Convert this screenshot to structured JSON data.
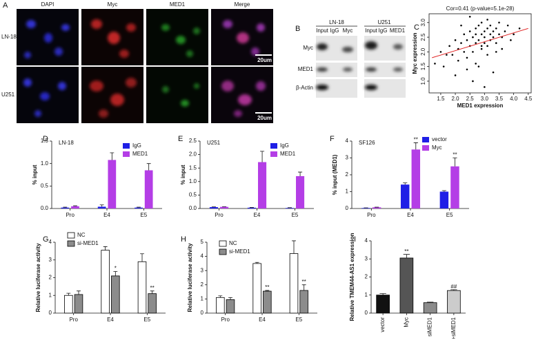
{
  "figure_a": {
    "panel_label": "A",
    "columns": [
      "DAPI",
      "Myc",
      "MED1",
      "Merge"
    ],
    "rows": [
      "LN-18",
      "U251"
    ],
    "scale_bars": [
      "20um",
      "20um"
    ]
  },
  "figure_b": {
    "panel_label": "B",
    "groups": [
      {
        "name": "LN-18",
        "lanes": [
          "Input",
          "IgG",
          "Myc"
        ]
      },
      {
        "name": "U251",
        "lanes": [
          "Input",
          "IgG",
          "MED1"
        ]
      }
    ],
    "rows": [
      "Myc",
      "MED1",
      "β-Actin"
    ]
  },
  "chart_data": [
    {
      "type": "scatter",
      "panel_label": "C",
      "title": "Cor=0.41 (p-value=5.1e-28)",
      "x_label": "MED1 expression",
      "y_label": "Myc expression",
      "x": [
        1.3,
        1.5,
        1.6,
        1.8,
        1.9,
        2.0,
        2.1,
        2.1,
        2.2,
        2.3,
        2.3,
        2.4,
        2.4,
        2.5,
        2.5,
        2.6,
        2.6,
        2.7,
        2.7,
        2.7,
        2.8,
        2.8,
        2.9,
        2.9,
        2.9,
        3.0,
        3.0,
        3.0,
        3.1,
        3.1,
        3.1,
        3.2,
        3.2,
        3.2,
        3.3,
        3.3,
        3.4,
        3.4,
        3.5,
        3.5,
        3.6,
        3.7,
        3.8,
        4.0,
        4.2,
        2.0,
        2.6,
        3.0,
        3.3,
        2.8,
        2.4,
        3.6,
        2.2,
        3.1,
        2.9,
        1.7,
        3.9,
        2.5,
        3.4,
        2.7
      ],
      "y": [
        1.6,
        2.0,
        1.5,
        2.2,
        1.9,
        2.4,
        1.7,
        2.1,
        2.3,
        2.0,
        2.6,
        1.8,
        2.4,
        2.2,
        2.7,
        2.0,
        2.5,
        2.3,
        2.8,
        1.6,
        2.4,
        2.9,
        2.1,
        2.6,
        3.0,
        2.3,
        2.7,
        2.5,
        2.2,
        2.8,
        3.1,
        2.4,
        2.6,
        2.9,
        2.5,
        2.7,
        2.3,
        2.8,
        2.6,
        3.0,
        2.5,
        2.7,
        2.9,
        2.6,
        2.8,
        1.2,
        1.0,
        0.8,
        1.3,
        1.5,
        1.4,
        2.1,
        2.9,
        1.9,
        2.2,
        1.9,
        2.4,
        3.2,
        2.0,
        2.6
      ],
      "color": "#000000",
      "fit_line": {
        "x": [
          1.2,
          4.5
        ],
        "y": [
          1.8,
          2.8
        ],
        "color": "#e02020"
      },
      "xlim": [
        1.1,
        4.6
      ],
      "ylim": [
        0.6,
        3.3
      ],
      "xticks": [
        1.5,
        {
          "value": 2,
          "label": "2.0"
        },
        2.5,
        {
          "value": 3,
          "label": "3.0"
        },
        3.5,
        {
          "value": 4,
          "label": "4.0"
        },
        4.5
      ],
      "yticks": [
        {
          "value": 1,
          "label": "1.0"
        },
        1.5,
        {
          "value": 2,
          "label": "2.0"
        },
        2.5,
        {
          "value": 3,
          "label": "3.0"
        }
      ]
    },
    {
      "type": "bar",
      "panel_label": "D",
      "title": "LN-18",
      "y_label": "% input",
      "categories": [
        "Pro",
        "E4",
        "E5"
      ],
      "series": [
        {
          "name": "IgG",
          "color": "#1f1fe6",
          "values": [
            0.02,
            0.04,
            0.02
          ],
          "errors": [
            0.01,
            0.04,
            0.01
          ]
        },
        {
          "name": "MED1",
          "color": "#b43ee6",
          "values": [
            0.05,
            1.08,
            0.85
          ],
          "errors": [
            0.01,
            0.16,
            0.15
          ]
        }
      ],
      "ylim": [
        0,
        1.5
      ],
      "yticks": [
        {
          "value": 0,
          "label": "0.0"
        },
        0.5,
        {
          "value": 1,
          "label": "1.0"
        },
        1.5
      ]
    },
    {
      "type": "bar",
      "panel_label": "E",
      "title": "U251",
      "y_label": "% input",
      "categories": [
        "Pro",
        "E4",
        "E5"
      ],
      "series": [
        {
          "name": "IgG",
          "color": "#1f1fe6",
          "values": [
            0.05,
            0.03,
            0.02
          ],
          "errors": [
            0.01,
            0.01,
            0.01
          ]
        },
        {
          "name": "MED1",
          "color": "#b43ee6",
          "values": [
            0.06,
            1.72,
            1.2
          ],
          "errors": [
            0.01,
            0.4,
            0.15
          ]
        }
      ],
      "ylim": [
        0,
        2.5
      ],
      "yticks": [
        {
          "value": 0,
          "label": "0.0"
        },
        0.5,
        {
          "value": 1,
          "label": "1.0"
        },
        1.5,
        {
          "value": 2,
          "label": "2.0"
        },
        2.5
      ]
    },
    {
      "type": "bar",
      "panel_label": "F",
      "title": "SF126",
      "y_label": "% input (MED1)",
      "categories": [
        "Pro",
        "E4",
        "E5"
      ],
      "series": [
        {
          "name": "vector",
          "color": "#1f1fe6",
          "values": [
            0.03,
            1.42,
            1.0
          ],
          "errors": [
            0.01,
            0.1,
            0.06
          ],
          "annotations": [
            null,
            null,
            null
          ]
        },
        {
          "name": "Myc",
          "color": "#b43ee6",
          "values": [
            0.07,
            3.5,
            2.5
          ],
          "errors": [
            0.01,
            0.4,
            0.5
          ],
          "annotations": [
            null,
            "**",
            "**"
          ]
        }
      ],
      "ylim": [
        0,
        4
      ],
      "yticks": [
        0,
        1,
        2,
        3,
        4
      ]
    },
    {
      "type": "bar",
      "panel_label": "G",
      "y_label": "Relative luciferase activity",
      "categories": [
        "Pro",
        "E4",
        "E5"
      ],
      "outline": "#000000",
      "series": [
        {
          "name": "NC",
          "color": "#ffffff",
          "values": [
            1.0,
            3.55,
            2.9
          ],
          "errors": [
            0.12,
            0.2,
            0.45
          ],
          "annotations": [
            null,
            null,
            null
          ]
        },
        {
          "name": "si-MED1",
          "color": "#8c8c8c",
          "values": [
            1.05,
            2.1,
            1.1
          ],
          "errors": [
            0.2,
            0.25,
            0.15
          ],
          "annotations": [
            null,
            "*",
            "**"
          ]
        }
      ],
      "ylim": [
        0,
        4
      ],
      "yticks": [
        0,
        1,
        2,
        3,
        4
      ]
    },
    {
      "type": "bar",
      "panel_label": "H",
      "y_label": "Relative luciferase activity",
      "categories": [
        "Pro",
        "E4",
        "E5"
      ],
      "outline": "#000000",
      "series": [
        {
          "name": "NC",
          "color": "#ffffff",
          "values": [
            1.1,
            3.5,
            4.2
          ],
          "errors": [
            0.12,
            0.08,
            0.9
          ],
          "annotations": [
            null,
            null,
            null
          ]
        },
        {
          "name": "si-MED1",
          "color": "#8c8c8c",
          "values": [
            0.95,
            1.55,
            1.6
          ],
          "errors": [
            0.15,
            0.05,
            0.4
          ],
          "annotations": [
            null,
            "**",
            "**"
          ]
        }
      ],
      "ylim": [
        0,
        5
      ],
      "yticks": [
        0,
        1,
        2,
        3,
        4,
        5
      ]
    },
    {
      "type": "bar",
      "panel_label": "I",
      "y_label": "Relative TMEM44-AS1 expression",
      "categories": [
        "vector",
        "Myc",
        "siMED1",
        "Myc+siMED1"
      ],
      "outline": "#000000",
      "values": [
        1.0,
        3.05,
        0.58,
        1.25
      ],
      "errors": [
        0.08,
        0.2,
        0.03,
        0.05
      ],
      "annotations": [
        null,
        "**",
        null,
        "##"
      ],
      "colors": [
        "#111111",
        "#555555",
        "#8c8c8c",
        "#cccccc"
      ],
      "ylim": [
        0,
        4
      ],
      "yticks": [
        0,
        1,
        2,
        3,
        4
      ]
    }
  ]
}
